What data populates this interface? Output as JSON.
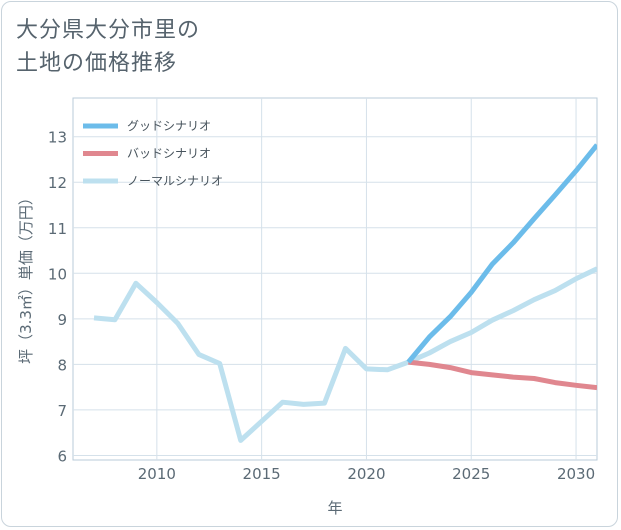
{
  "title_lines": [
    "大分県大分市里の",
    "土地の価格推移"
  ],
  "chart_data": {
    "type": "line",
    "xlabel": "年",
    "ylabel": "坪（3.3㎡）単価（万円）",
    "xlim": [
      2006,
      2031
    ],
    "ylim": [
      5.9,
      13.85
    ],
    "xticks": [
      2010,
      2015,
      2020,
      2025,
      2030
    ],
    "yticks": [
      6,
      7,
      8,
      9,
      10,
      11,
      12,
      13
    ],
    "grid": true,
    "legend_position": "top-left",
    "series": [
      {
        "name": "グッドシナリオ",
        "color": "#6cbcea",
        "x": [
          2022,
          2023,
          2024,
          2025,
          2026,
          2027,
          2028,
          2029,
          2030,
          2031
        ],
        "values": [
          8.05,
          8.6,
          9.05,
          9.58,
          10.2,
          10.67,
          11.2,
          11.72,
          12.25,
          12.82
        ]
      },
      {
        "name": "バッドシナリオ",
        "color": "#e0878f",
        "x": [
          2022,
          2023,
          2024,
          2025,
          2026,
          2027,
          2028,
          2029,
          2030,
          2031
        ],
        "values": [
          8.05,
          8.0,
          7.93,
          7.82,
          7.77,
          7.72,
          7.69,
          7.6,
          7.54,
          7.49
        ]
      },
      {
        "name": "ノーマルシナリオ",
        "color": "#bde0ef",
        "x": [
          2007,
          2008,
          2009,
          2010,
          2011,
          2012,
          2013,
          2014,
          2015,
          2016,
          2017,
          2018,
          2019,
          2020,
          2021,
          2022,
          2023,
          2024,
          2025,
          2026,
          2027,
          2028,
          2029,
          2030,
          2031
        ],
        "values": [
          9.02,
          8.98,
          9.78,
          9.36,
          8.9,
          8.22,
          8.02,
          6.33,
          6.75,
          7.17,
          7.12,
          7.15,
          8.35,
          7.9,
          7.88,
          8.05,
          8.25,
          8.5,
          8.7,
          8.97,
          9.18,
          9.42,
          9.62,
          9.88,
          10.1
        ]
      }
    ]
  }
}
